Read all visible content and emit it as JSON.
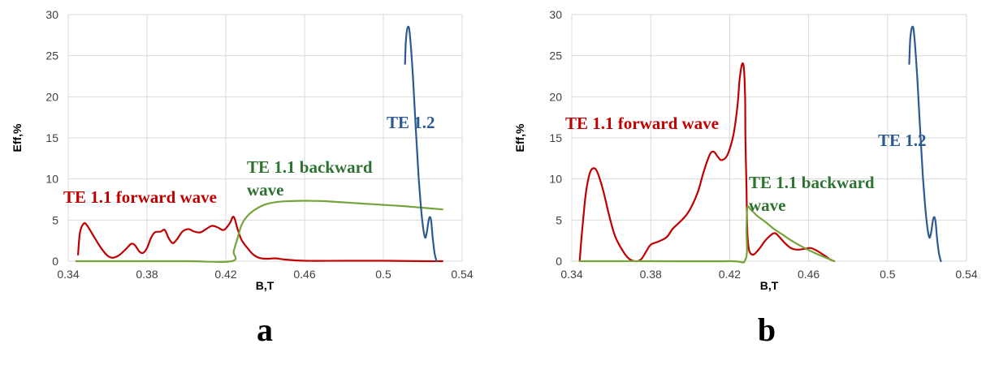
{
  "chart_data": [
    {
      "type": "line",
      "panel_label": "a",
      "xlabel": "B,T",
      "ylabel": "Eff,%",
      "xlim": [
        0.34,
        0.54
      ],
      "ylim": [
        0,
        30
      ],
      "x_ticks": [
        "0.34",
        "0.38",
        "0.42",
        "0.46",
        "0.5",
        "0.54"
      ],
      "y_ticks": [
        "0",
        "5",
        "10",
        "15",
        "20",
        "25",
        "30"
      ],
      "grid": true,
      "series": [
        {
          "name": "TE 1.1 forward wave",
          "color": "#c00000",
          "points": [
            [
              0.345,
              0.8
            ],
            [
              0.346,
              3.5
            ],
            [
              0.348,
              4.6
            ],
            [
              0.35,
              4.2
            ],
            [
              0.353,
              3.0
            ],
            [
              0.357,
              1.5
            ],
            [
              0.361,
              0.5
            ],
            [
              0.365,
              0.6
            ],
            [
              0.369,
              1.4
            ],
            [
              0.372,
              2.1
            ],
            [
              0.374,
              1.9
            ],
            [
              0.376,
              1.2
            ],
            [
              0.378,
              1.0
            ],
            [
              0.38,
              1.6
            ],
            [
              0.382,
              2.8
            ],
            [
              0.384,
              3.5
            ],
            [
              0.387,
              3.6
            ],
            [
              0.389,
              3.8
            ],
            [
              0.391,
              2.8
            ],
            [
              0.393,
              2.2
            ],
            [
              0.395,
              2.6
            ],
            [
              0.398,
              3.6
            ],
            [
              0.401,
              3.9
            ],
            [
              0.404,
              3.6
            ],
            [
              0.407,
              3.5
            ],
            [
              0.41,
              3.9
            ],
            [
              0.413,
              4.3
            ],
            [
              0.416,
              4.1
            ],
            [
              0.419,
              3.8
            ],
            [
              0.422,
              4.6
            ],
            [
              0.424,
              5.4
            ],
            [
              0.426,
              3.9
            ],
            [
              0.428,
              2.6
            ],
            [
              0.431,
              1.6
            ],
            [
              0.434,
              0.8
            ],
            [
              0.437,
              0.4
            ],
            [
              0.441,
              0.3
            ],
            [
              0.445,
              0.35
            ],
            [
              0.45,
              0.2
            ],
            [
              0.46,
              0.05
            ],
            [
              0.48,
              0.05
            ],
            [
              0.5,
              0.05
            ],
            [
              0.52,
              0.0
            ],
            [
              0.53,
              0.0
            ]
          ]
        },
        {
          "name": "TE 1.1 backward wave",
          "color": "#76a33c",
          "points": [
            [
              0.344,
              0.0
            ],
            [
              0.37,
              0.0
            ],
            [
              0.4,
              0.0
            ],
            [
              0.423,
              0.0
            ],
            [
              0.424,
              1.2
            ],
            [
              0.426,
              2.8
            ],
            [
              0.428,
              4.4
            ],
            [
              0.431,
              5.5
            ],
            [
              0.435,
              6.3
            ],
            [
              0.44,
              6.9
            ],
            [
              0.446,
              7.2
            ],
            [
              0.452,
              7.3
            ],
            [
              0.46,
              7.35
            ],
            [
              0.47,
              7.3
            ],
            [
              0.48,
              7.15
            ],
            [
              0.49,
              7.0
            ],
            [
              0.5,
              6.85
            ],
            [
              0.51,
              6.7
            ],
            [
              0.52,
              6.5
            ],
            [
              0.53,
              6.3
            ]
          ]
        },
        {
          "name": "TE 1.2",
          "color": "#2c5a91",
          "points": [
            [
              0.511,
              24.0
            ],
            [
              0.5115,
              27.0
            ],
            [
              0.5125,
              28.5
            ],
            [
              0.5135,
              27.5
            ],
            [
              0.515,
              22.5
            ],
            [
              0.5165,
              16.0
            ],
            [
              0.518,
              10.0
            ],
            [
              0.5195,
              5.5
            ],
            [
              0.521,
              3.0
            ],
            [
              0.522,
              3.4
            ],
            [
              0.5232,
              5.2
            ],
            [
              0.5242,
              5.0
            ],
            [
              0.525,
              3.0
            ],
            [
              0.526,
              1.0
            ],
            [
              0.527,
              0.0
            ]
          ]
        }
      ],
      "annotations": [
        {
          "text": "TE 1.2",
          "color": "#2c5a91"
        },
        {
          "text": "TE 1.1 backward",
          "color": "#2e7232"
        },
        {
          "text": "wave",
          "color": "#2e7232"
        },
        {
          "text": "TE 1.1 forward wave",
          "color": "#c00000"
        }
      ]
    },
    {
      "type": "line",
      "panel_label": "b",
      "xlabel": "B,T",
      "ylabel": "Eff,%",
      "xlim": [
        0.34,
        0.54
      ],
      "ylim": [
        0,
        30
      ],
      "x_ticks": [
        "0.34",
        "0.38",
        "0.42",
        "0.46",
        "0.5",
        "0.54"
      ],
      "y_ticks": [
        "0",
        "5",
        "10",
        "15",
        "20",
        "25",
        "30"
      ],
      "grid": true,
      "series": [
        {
          "name": "TE 1.1 forward wave",
          "color": "#c00000",
          "points": [
            [
              0.344,
              0.0
            ],
            [
              0.345,
              3.0
            ],
            [
              0.347,
              8.0
            ],
            [
              0.349,
              10.6
            ],
            [
              0.351,
              11.3
            ],
            [
              0.353,
              10.8
            ],
            [
              0.356,
              8.5
            ],
            [
              0.359,
              5.5
            ],
            [
              0.362,
              3.0
            ],
            [
              0.366,
              1.2
            ],
            [
              0.369,
              0.3
            ],
            [
              0.372,
              0.0
            ],
            [
              0.375,
              0.2
            ],
            [
              0.378,
              1.3
            ],
            [
              0.38,
              2.0
            ],
            [
              0.384,
              2.4
            ],
            [
              0.388,
              2.9
            ],
            [
              0.391,
              3.9
            ],
            [
              0.394,
              4.6
            ],
            [
              0.398,
              5.6
            ],
            [
              0.401,
              6.8
            ],
            [
              0.404,
              8.5
            ],
            [
              0.407,
              11.0
            ],
            [
              0.41,
              13.0
            ],
            [
              0.412,
              13.3
            ],
            [
              0.414,
              12.7
            ],
            [
              0.416,
              12.3
            ],
            [
              0.419,
              13.0
            ],
            [
              0.422,
              15.5
            ],
            [
              0.424,
              19.0
            ],
            [
              0.425,
              22.0
            ],
            [
              0.4262,
              23.9
            ],
            [
              0.4272,
              23.5
            ],
            [
              0.4278,
              20.0
            ],
            [
              0.428,
              15.0
            ],
            [
              0.4285,
              9.0
            ],
            [
              0.4288,
              4.5
            ],
            [
              0.4292,
              2.5
            ],
            [
              0.43,
              1.2
            ],
            [
              0.432,
              0.8
            ],
            [
              0.435,
              1.5
            ],
            [
              0.438,
              2.5
            ],
            [
              0.441,
              3.2
            ],
            [
              0.443,
              3.4
            ],
            [
              0.445,
              3.0
            ],
            [
              0.448,
              2.2
            ],
            [
              0.451,
              1.6
            ],
            [
              0.454,
              1.4
            ],
            [
              0.458,
              1.5
            ],
            [
              0.461,
              1.6
            ],
            [
              0.464,
              1.3
            ],
            [
              0.468,
              0.7
            ],
            [
              0.471,
              0.2
            ],
            [
              0.473,
              0.0
            ]
          ]
        },
        {
          "name": "TE 1.1 backward wave",
          "color": "#76a33c",
          "points": [
            [
              0.344,
              0.0
            ],
            [
              0.38,
              0.0
            ],
            [
              0.42,
              0.0
            ],
            [
              0.428,
              0.2
            ],
            [
              0.4285,
              4.0
            ],
            [
              0.429,
              6.5
            ],
            [
              0.431,
              6.2
            ],
            [
              0.434,
              5.5
            ],
            [
              0.438,
              4.8
            ],
            [
              0.442,
              4.0
            ],
            [
              0.447,
              3.2
            ],
            [
              0.452,
              2.4
            ],
            [
              0.458,
              1.6
            ],
            [
              0.464,
              0.9
            ],
            [
              0.47,
              0.3
            ],
            [
              0.473,
              0.0
            ]
          ]
        },
        {
          "name": "TE 1.2",
          "color": "#2c5a91",
          "points": [
            [
              0.511,
              24.0
            ],
            [
              0.5115,
              27.0
            ],
            [
              0.5125,
              28.5
            ],
            [
              0.5135,
              27.5
            ],
            [
              0.515,
              22.5
            ],
            [
              0.5165,
              16.0
            ],
            [
              0.518,
              10.0
            ],
            [
              0.5195,
              5.5
            ],
            [
              0.521,
              3.0
            ],
            [
              0.522,
              3.4
            ],
            [
              0.5232,
              5.2
            ],
            [
              0.5242,
              5.0
            ],
            [
              0.525,
              3.0
            ],
            [
              0.526,
              1.0
            ],
            [
              0.527,
              0.0
            ]
          ]
        }
      ],
      "annotations": [
        {
          "text": "TE 1.1 forward wave",
          "color": "#c00000"
        },
        {
          "text": "TE 1.1 backward",
          "color": "#2e7232"
        },
        {
          "text": "wave",
          "color": "#2e7232"
        },
        {
          "text": "TE 1.2",
          "color": "#2c5a91"
        }
      ]
    }
  ]
}
